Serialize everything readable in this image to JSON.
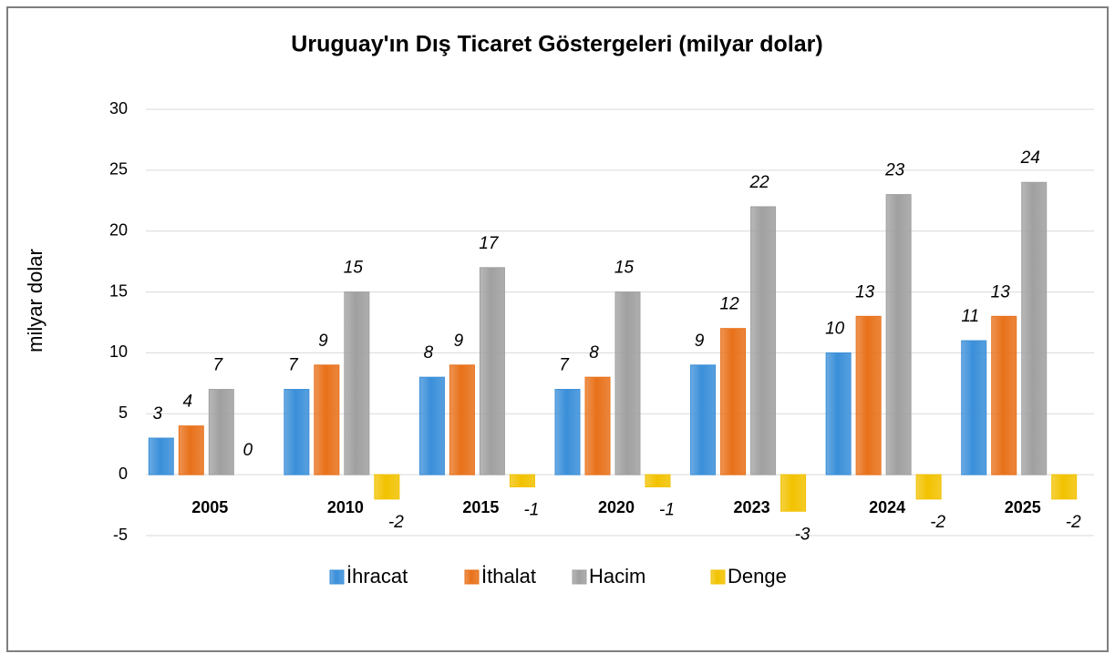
{
  "chart_data": {
    "type": "bar",
    "title": "Uruguay'ın Dış Ticaret Göstergeleri (milyar dolar)",
    "y_label": "milyar dolar",
    "categories": [
      "2005",
      "2010",
      "2015",
      "2020",
      "2023",
      "2024",
      "2025"
    ],
    "series": [
      {
        "name": "İhracat",
        "color": "#3a8fd9",
        "values": [
          3,
          7,
          8,
          7,
          9,
          10,
          11
        ]
      },
      {
        "name": "İthalat",
        "color": "#e8711a",
        "values": [
          4,
          9,
          9,
          8,
          12,
          13,
          13
        ]
      },
      {
        "name": "Hacim",
        "color": "#a0a0a0",
        "values": [
          7,
          15,
          17,
          15,
          22,
          23,
          24
        ]
      },
      {
        "name": "Denge",
        "color": "#f2c200",
        "values": [
          0,
          -2,
          -1,
          -1,
          -3,
          -2,
          -2
        ]
      }
    ],
    "ylim": [
      -5,
      30
    ],
    "yticks": [
      -5,
      0,
      5,
      10,
      15,
      20,
      25,
      30
    ],
    "grid": true,
    "legend": "bottom"
  }
}
